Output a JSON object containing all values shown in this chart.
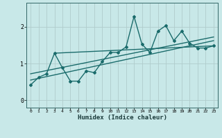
{
  "xlabel": "Humidex (Indice chaleur)",
  "bg_color": "#c8e8e8",
  "line_color": "#1a6b6b",
  "grid_color": "#b0cccc",
  "xlim": [
    -0.5,
    23.5
  ],
  "ylim": [
    -0.2,
    2.65
  ],
  "xticks": [
    0,
    1,
    2,
    3,
    4,
    5,
    6,
    7,
    8,
    9,
    10,
    11,
    12,
    13,
    14,
    15,
    16,
    17,
    18,
    19,
    20,
    21,
    22,
    23
  ],
  "yticks": [
    0,
    1,
    2
  ],
  "main_x": [
    0,
    1,
    2,
    3,
    4,
    5,
    6,
    7,
    8,
    9,
    10,
    11,
    12,
    13,
    14,
    15,
    16,
    17,
    18,
    19,
    20,
    21,
    22,
    23
  ],
  "main_y": [
    0.42,
    0.62,
    0.72,
    1.28,
    0.88,
    0.52,
    0.52,
    0.8,
    0.75,
    1.05,
    1.3,
    1.3,
    1.45,
    2.28,
    1.52,
    1.3,
    1.88,
    2.03,
    1.62,
    1.88,
    1.55,
    1.42,
    1.42,
    1.48
  ],
  "trend1_x": [
    3,
    23
  ],
  "trend1_y": [
    1.28,
    1.48
  ],
  "trend2_x": [
    0,
    23
  ],
  "trend2_y": [
    0.72,
    1.72
  ],
  "trend3_x": [
    0,
    23
  ],
  "trend3_y": [
    0.55,
    1.62
  ]
}
